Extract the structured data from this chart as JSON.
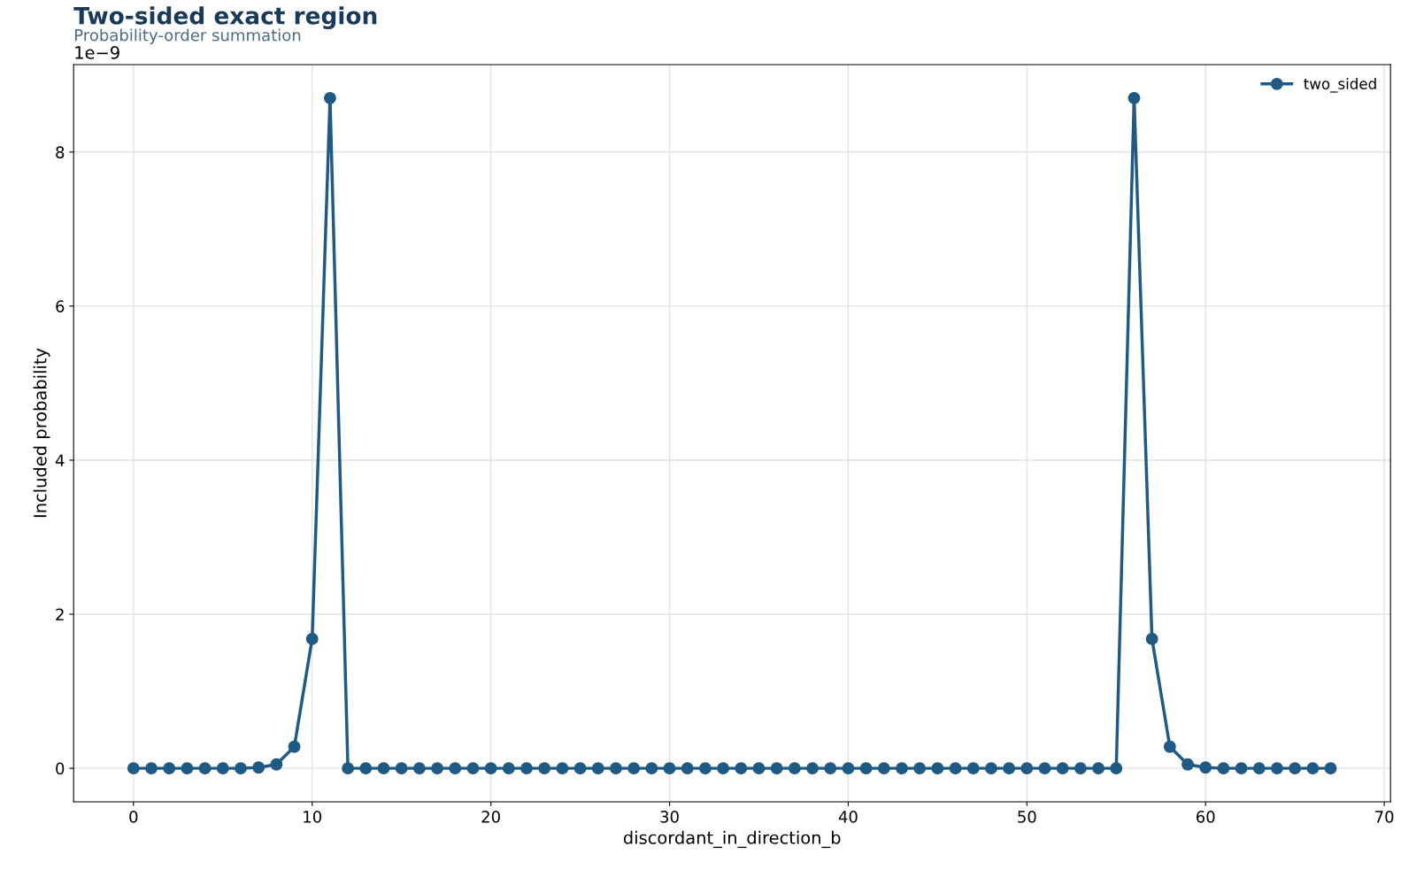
{
  "chart_data": {
    "type": "line",
    "title": "Two-sided exact region",
    "subtitle": "Probability-order summation",
    "xlabel": "discordant_in_direction_b",
    "ylabel": "Included probability",
    "x": [
      0,
      1,
      2,
      3,
      4,
      5,
      6,
      7,
      8,
      9,
      10,
      11,
      12,
      13,
      14,
      15,
      16,
      17,
      18,
      19,
      20,
      21,
      22,
      23,
      24,
      25,
      26,
      27,
      28,
      29,
      30,
      31,
      32,
      33,
      34,
      35,
      36,
      37,
      38,
      39,
      40,
      41,
      42,
      43,
      44,
      45,
      46,
      47,
      48,
      49,
      50,
      51,
      52,
      53,
      54,
      55,
      56,
      57,
      58,
      59,
      60,
      61,
      62,
      63,
      64,
      65,
      66,
      67
    ],
    "series": [
      {
        "name": "two_sided",
        "color": "#1f5a85",
        "values": [
          0,
          0,
          0,
          0,
          0,
          0,
          0,
          0.01,
          0.05,
          0.28,
          1.68,
          8.7,
          0,
          0,
          0,
          0,
          0,
          0,
          0,
          0,
          0,
          0,
          0,
          0,
          0,
          0,
          0,
          0,
          0,
          0,
          0,
          0,
          0,
          0,
          0,
          0,
          0,
          0,
          0,
          0,
          0,
          0,
          0,
          0,
          0,
          0,
          0,
          0,
          0,
          0,
          0,
          0,
          0,
          0,
          0,
          0,
          8.7,
          1.68,
          0.28,
          0.05,
          0.01,
          0,
          0,
          0,
          0,
          0,
          0,
          0
        ]
      }
    ],
    "xlim": [
      -3.35,
      70.35
    ],
    "xticks": [
      0,
      10,
      20,
      30,
      40,
      50,
      60,
      70
    ],
    "ylim": [
      -0.435,
      9.135
    ],
    "yticks": [
      0,
      2,
      4,
      6,
      8
    ],
    "annotations": [
      "1e−9"
    ],
    "grid": true,
    "legend": "top right",
    "marker": "circle",
    "line_style": "solid"
  }
}
